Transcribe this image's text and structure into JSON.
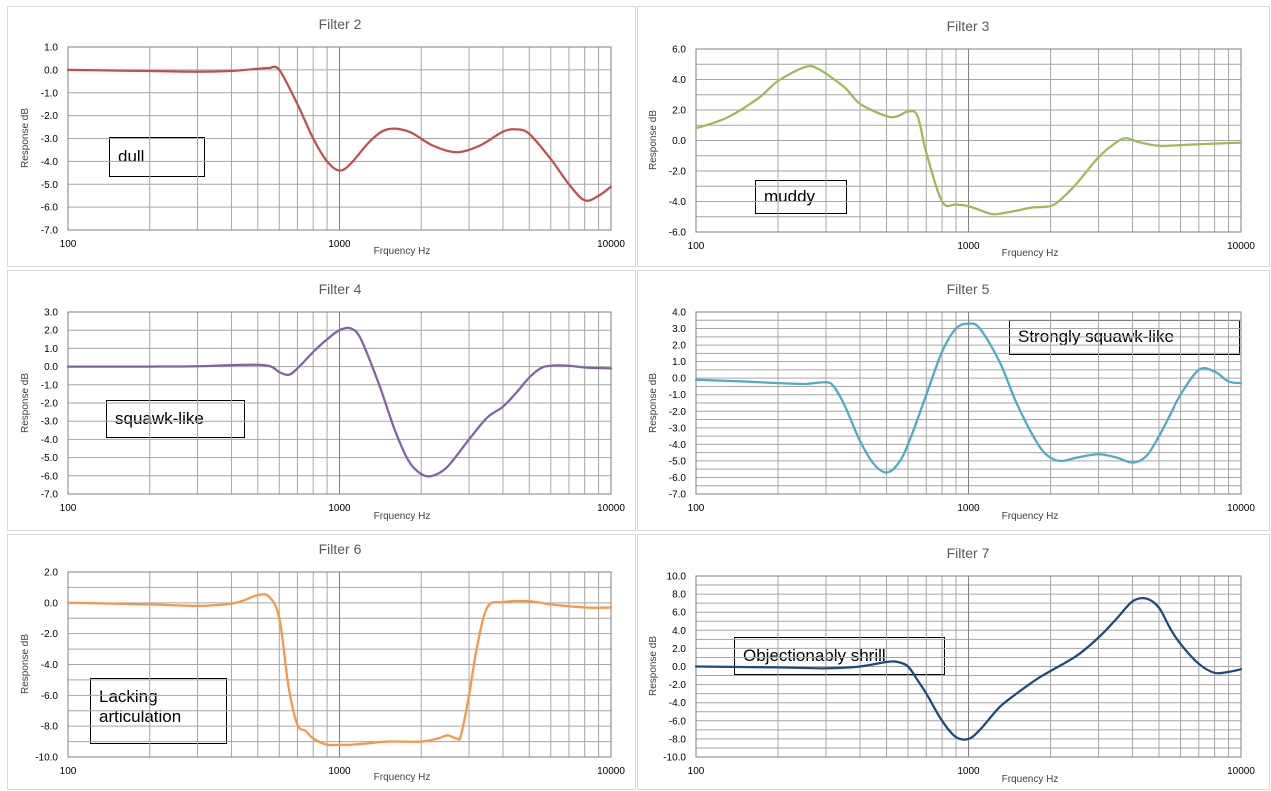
{
  "chart_data": [
    {
      "type": "line",
      "title": "Filter 2",
      "xlabel": "Frquency Hz",
      "ylabel": "Response dB",
      "xscale": "log",
      "xlim": [
        100,
        10000
      ],
      "ylim": [
        -7.0,
        1.0
      ],
      "ytick_step": 1.0,
      "ytick_labels": [
        "1.0",
        "0.0",
        "-1.0",
        "-2.0",
        "-3.0",
        "-4.0",
        "-5.0",
        "-6.0",
        "-7.0"
      ],
      "xtick_labels": [
        "100",
        "1000",
        "10000"
      ],
      "grid": true,
      "color": "#C0504D",
      "annotation": "dull",
      "x": [
        100,
        200,
        300,
        400,
        500,
        550,
        600,
        700,
        800,
        900,
        1000,
        1100,
        1300,
        1500,
        1800,
        2200,
        2700,
        3300,
        4000,
        4500,
        5000,
        6000,
        7000,
        8000,
        9000,
        10000
      ],
      "y": [
        0.0,
        -0.05,
        -0.08,
        -0.05,
        0.05,
        0.08,
        0.0,
        -1.5,
        -3.0,
        -4.0,
        -4.4,
        -4.1,
        -3.1,
        -2.6,
        -2.7,
        -3.3,
        -3.6,
        -3.3,
        -2.7,
        -2.6,
        -2.8,
        -3.9,
        -5.0,
        -5.7,
        -5.5,
        -5.1
      ]
    },
    {
      "type": "line",
      "title": "Filter 3",
      "xlabel": "Frquency Hz",
      "ylabel": "Response dB",
      "xscale": "log",
      "xlim": [
        100,
        10000
      ],
      "ylim": [
        -6.0,
        6.0
      ],
      "ytick_step": 1.0,
      "ytick_labels": [
        "6.0",
        "4.0",
        "2.0",
        "0.0",
        "-2.0",
        "-4.0",
        "-6.0"
      ],
      "xtick_labels": [
        "100",
        "1000",
        "10000"
      ],
      "grid": true,
      "color": "#9BBB59",
      "annotation": "muddy",
      "x": [
        100,
        130,
        170,
        200,
        250,
        280,
        350,
        400,
        500,
        550,
        600,
        650,
        700,
        800,
        900,
        1000,
        1200,
        1300,
        1500,
        1700,
        2000,
        2200,
        2500,
        3000,
        3500,
        3800,
        4200,
        5000,
        6000,
        8000,
        10000
      ],
      "y": [
        0.8,
        1.5,
        2.8,
        3.9,
        4.8,
        4.7,
        3.5,
        2.4,
        1.6,
        1.6,
        1.9,
        1.6,
        -0.8,
        -4.0,
        -4.2,
        -4.3,
        -4.8,
        -4.8,
        -4.6,
        -4.4,
        -4.3,
        -3.8,
        -2.8,
        -1.1,
        -0.1,
        0.15,
        -0.1,
        -0.35,
        -0.3,
        -0.2,
        -0.15
      ]
    },
    {
      "type": "line",
      "title": "Filter 4",
      "xlabel": "Frquency Hz",
      "ylabel": "Response dB",
      "xscale": "log",
      "xlim": [
        100,
        10000
      ],
      "ylim": [
        -7.0,
        3.0
      ],
      "ytick_step": 1.0,
      "ytick_labels": [
        "3.0",
        "2.0",
        "1.0",
        "0.0",
        "-1.0",
        "-2.0",
        "-3.0",
        "-4.0",
        "-5.0",
        "-6.0",
        "-7.0"
      ],
      "xtick_labels": [
        "100",
        "1000",
        "10000"
      ],
      "grid": true,
      "color": "#8064A2",
      "annotation": "squawk-like",
      "x": [
        100,
        200,
        300,
        400,
        500,
        560,
        600,
        650,
        700,
        800,
        900,
        1000,
        1100,
        1200,
        1400,
        1600,
        1800,
        2000,
        2200,
        2500,
        3000,
        3500,
        4000,
        4500,
        5000,
        5500,
        6000,
        7000,
        8000,
        10000
      ],
      "y": [
        0.0,
        0.0,
        0.02,
        0.08,
        0.1,
        0.0,
        -0.3,
        -0.45,
        -0.1,
        0.8,
        1.5,
        2.0,
        2.1,
        1.5,
        -1.0,
        -3.5,
        -5.2,
        -5.9,
        -6.0,
        -5.5,
        -4.0,
        -2.8,
        -2.2,
        -1.4,
        -0.6,
        -0.1,
        0.05,
        0.05,
        -0.05,
        -0.1
      ]
    },
    {
      "type": "line",
      "title": "Filter 5",
      "xlabel": "Frquency Hz",
      "ylabel": "Response dB",
      "xscale": "log",
      "xlim": [
        100,
        10000
      ],
      "ylim": [
        -7.0,
        4.0
      ],
      "ytick_step": 0.5,
      "ytick_labels": [
        "4.0",
        "3.0",
        "2.0",
        "1.0",
        "0.0",
        "-1.0",
        "-2.0",
        "-3.0",
        "-4.0",
        "-5.0",
        "-6.0",
        "-7.0"
      ],
      "xtick_labels": [
        "100",
        "1000",
        "10000"
      ],
      "grid": true,
      "color": "#4BACC6",
      "annotation": "Strongly squawk-like",
      "x": [
        100,
        150,
        200,
        250,
        300,
        320,
        350,
        400,
        450,
        500,
        550,
        600,
        700,
        800,
        900,
        1000,
        1100,
        1300,
        1500,
        1800,
        2000,
        2200,
        2500,
        3000,
        3500,
        4000,
        4500,
        5000,
        5500,
        6000,
        7000,
        8000,
        9000,
        10000
      ],
      "y": [
        -0.1,
        -0.2,
        -0.3,
        -0.35,
        -0.25,
        -0.5,
        -1.6,
        -3.8,
        -5.2,
        -5.7,
        -5.2,
        -4.0,
        -1.0,
        1.6,
        3.0,
        3.3,
        3.0,
        1.0,
        -1.5,
        -4.0,
        -4.8,
        -5.0,
        -4.8,
        -4.6,
        -4.8,
        -5.1,
        -4.7,
        -3.5,
        -2.2,
        -1.0,
        0.5,
        0.4,
        -0.2,
        -0.3
      ]
    },
    {
      "type": "line",
      "title": "Filter 6",
      "xlabel": "Frquency Hz",
      "ylabel": "Response dB",
      "xscale": "log",
      "xlim": [
        100,
        10000
      ],
      "ylim": [
        -10.0,
        2.0
      ],
      "ytick_step": 1.0,
      "ytick_labels": [
        "2.0",
        "0.0",
        "-2.0",
        "-4.0",
        "-6.0",
        "-8.0",
        "-10.0"
      ],
      "xtick_labels": [
        "100",
        "1000",
        "10000"
      ],
      "grid": true,
      "color": "#F79646",
      "annotation": "Lacking articulation",
      "x": [
        100,
        200,
        300,
        400,
        450,
        500,
        550,
        600,
        650,
        700,
        750,
        800,
        900,
        1000,
        1100,
        1300,
        1500,
        2000,
        2300,
        2500,
        2700,
        2800,
        3000,
        3200,
        3500,
        4000,
        5000,
        6000,
        8000,
        10000
      ],
      "y": [
        0.0,
        -0.1,
        -0.2,
        -0.05,
        0.2,
        0.5,
        0.4,
        -1.0,
        -5.5,
        -7.9,
        -8.3,
        -8.8,
        -9.2,
        -9.2,
        -9.2,
        -9.1,
        -9.0,
        -9.0,
        -8.8,
        -8.6,
        -8.8,
        -8.6,
        -6.0,
        -3.0,
        -0.3,
        0.05,
        0.1,
        -0.1,
        -0.3,
        -0.3
      ]
    },
    {
      "type": "line",
      "title": "Filter 7",
      "xlabel": "Frquency Hz",
      "ylabel": "Response dB",
      "xscale": "log",
      "xlim": [
        100,
        10000
      ],
      "ylim": [
        -10.0,
        10.0
      ],
      "ytick_step": 1.0,
      "ytick_labels": [
        "10.0",
        "8.0",
        "6.0",
        "4.0",
        "2.0",
        "0.0",
        "-2.0",
        "-4.0",
        "-6.0",
        "-8.0",
        "-10.0"
      ],
      "xtick_labels": [
        "100",
        "1000",
        "10000"
      ],
      "grid": true,
      "color": "#1F497D",
      "annotation": "Objectionably shrill",
      "x": [
        100,
        200,
        300,
        400,
        500,
        550,
        600,
        650,
        700,
        800,
        900,
        1000,
        1100,
        1300,
        1500,
        1800,
        2000,
        2500,
        3000,
        3500,
        4000,
        4500,
        5000,
        5500,
        6000,
        7000,
        8000,
        9000,
        10000
      ],
      "y": [
        0.0,
        -0.1,
        -0.2,
        0.0,
        0.5,
        0.5,
        0.0,
        -1.5,
        -3.0,
        -6.0,
        -7.8,
        -8.0,
        -7.0,
        -4.5,
        -3.0,
        -1.3,
        -0.5,
        1.2,
        3.2,
        5.3,
        7.2,
        7.5,
        6.5,
        4.2,
        2.5,
        0.3,
        -0.7,
        -0.6,
        -0.3
      ]
    }
  ]
}
